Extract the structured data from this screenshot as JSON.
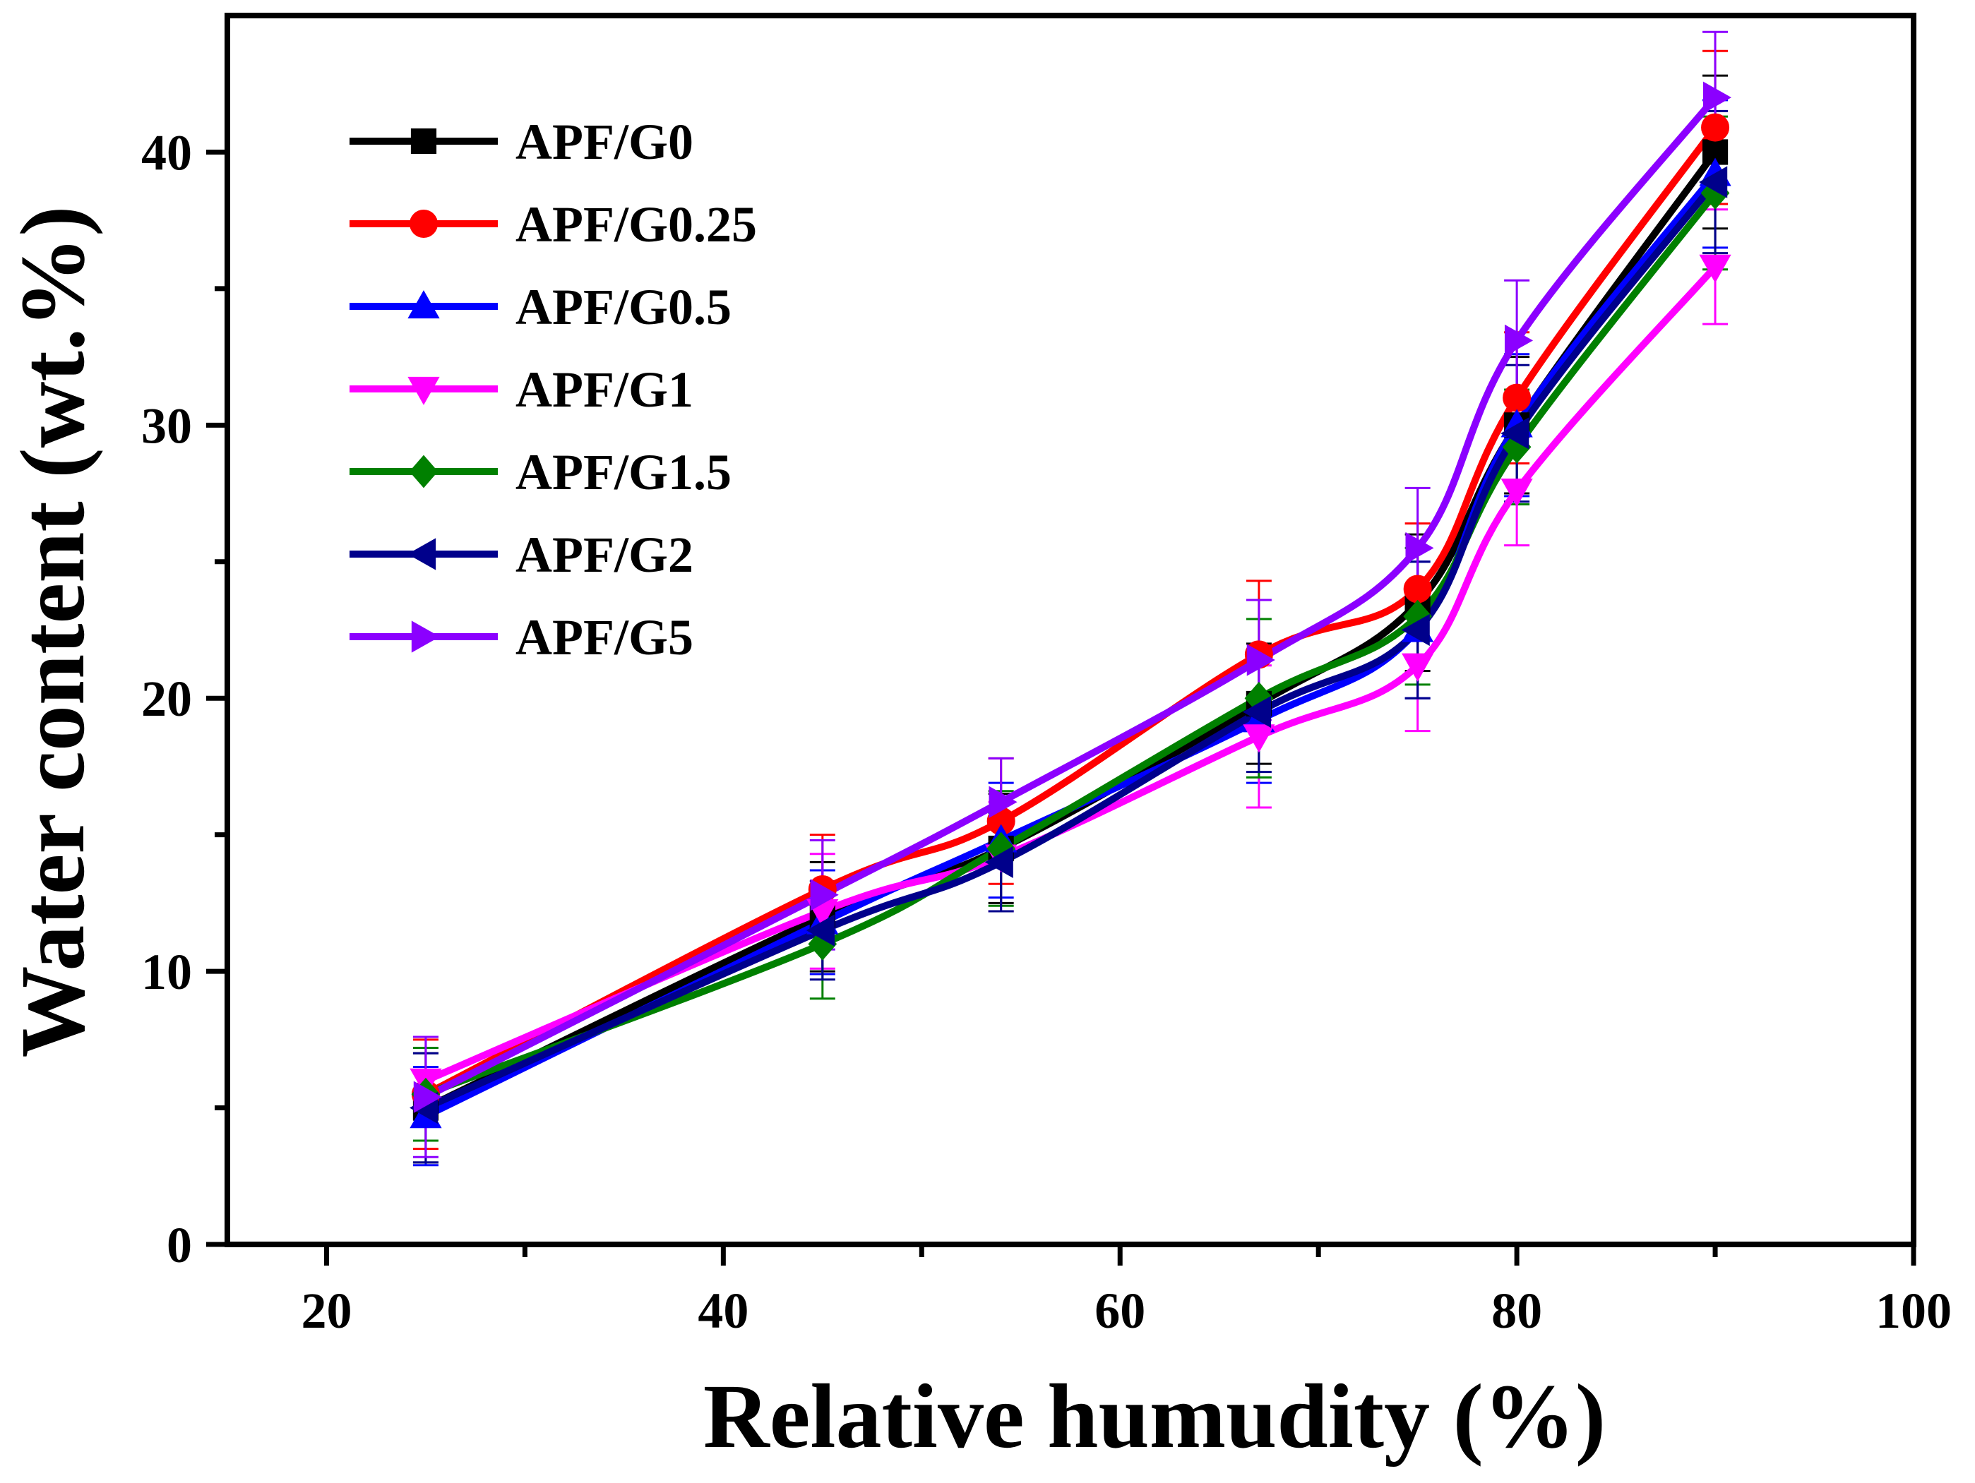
{
  "chart_data": {
    "type": "line",
    "xlabel": "Relative humudity (%)",
    "ylabel": "Water content (wt.%)",
    "xlim": [
      15,
      100
    ],
    "ylim": [
      0,
      45
    ],
    "xticks": [
      20,
      40,
      60,
      80,
      100
    ],
    "xticks_minor": [
      30,
      50,
      70,
      90
    ],
    "yticks": [
      0,
      10,
      20,
      30,
      40
    ],
    "yticks_minor": [
      5,
      15,
      25,
      35
    ],
    "grid": false,
    "legend_position": "top-left",
    "x": [
      25,
      45,
      54,
      67,
      75,
      80,
      90
    ],
    "series": [
      {
        "name": "APF/G0",
        "color": "#000000",
        "marker": "square",
        "values": [
          5.0,
          12.0,
          14.5,
          19.8,
          23.5,
          30.0,
          40.0
        ],
        "errors": [
          2.0,
          2.0,
          2.0,
          2.2,
          2.5,
          2.5,
          2.8
        ]
      },
      {
        "name": "APF/G0.25",
        "color": "#ff0000",
        "marker": "circle",
        "values": [
          5.5,
          13.0,
          15.5,
          21.6,
          24.0,
          31.0,
          40.9
        ],
        "errors": [
          2.0,
          2.0,
          2.3,
          2.7,
          2.4,
          2.4,
          2.8
        ]
      },
      {
        "name": "APF/G0.5",
        "color": "#0000ff",
        "marker": "triangle-up",
        "values": [
          4.7,
          11.8,
          14.8,
          19.2,
          22.5,
          30.0,
          39.2
        ],
        "errors": [
          1.8,
          1.9,
          2.1,
          2.3,
          2.5,
          2.6,
          2.7
        ]
      },
      {
        "name": "APF/G1",
        "color": "#ff00ff",
        "marker": "triangle-down",
        "values": [
          6.0,
          12.2,
          14.2,
          18.6,
          21.2,
          27.6,
          35.8
        ],
        "errors": [
          1.6,
          2.1,
          2.0,
          2.6,
          2.4,
          2.0,
          2.1
        ]
      },
      {
        "name": "APF/G1.5",
        "color": "#008000",
        "marker": "diamond",
        "values": [
          5.5,
          11.0,
          14.5,
          20.0,
          23.0,
          29.2,
          38.5
        ],
        "errors": [
          1.7,
          2.0,
          2.1,
          2.9,
          2.5,
          2.1,
          2.8
        ]
      },
      {
        "name": "APF/G2",
        "color": "#00008b",
        "marker": "triangle-left",
        "values": [
          5.0,
          11.5,
          14.0,
          19.5,
          22.5,
          29.7,
          38.9
        ],
        "errors": [
          2.0,
          1.8,
          1.8,
          2.2,
          2.5,
          2.5,
          2.6
        ]
      },
      {
        "name": "APF/G5",
        "color": "#8b00ff",
        "marker": "triangle-right",
        "values": [
          5.4,
          12.8,
          16.2,
          21.4,
          25.5,
          33.1,
          42.0
        ],
        "errors": [
          2.2,
          2.0,
          1.6,
          2.2,
          2.2,
          2.2,
          2.4
        ]
      }
    ]
  }
}
